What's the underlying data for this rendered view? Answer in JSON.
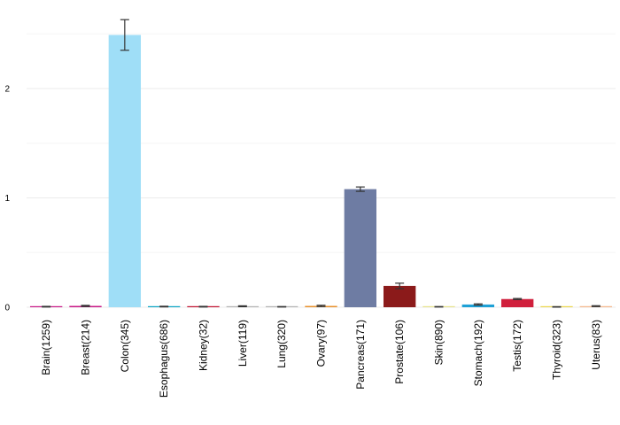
{
  "chart_data": {
    "type": "bar",
    "title": "",
    "xlabel": "",
    "ylabel": "",
    "grid": true,
    "legend": "none",
    "ylim": [
      0,
      2.6
    ],
    "yticks": [
      0,
      1,
      2
    ],
    "categories": [
      "Brain(1259)",
      "Breast(214)",
      "Colon(345)",
      "Esophagus(686)",
      "Kidney(32)",
      "Liver(119)",
      "Lung(320)",
      "Ovary(97)",
      "Pancreas(171)",
      "Prostate(106)",
      "Skin(890)",
      "Stomach(192)",
      "Testis(172)",
      "Thyroid(323)",
      "Uterus(83)"
    ],
    "values": [
      0.005,
      0.012,
      2.49,
      0.006,
      0.005,
      0.009,
      0.004,
      0.012,
      1.08,
      0.195,
      0.004,
      0.025,
      0.075,
      0.003,
      0.01
    ],
    "errors": [
      0.003,
      0.005,
      0.14,
      0.003,
      0.003,
      0.004,
      0.002,
      0.006,
      0.02,
      0.025,
      0.002,
      0.006,
      0.005,
      0.002,
      0.004
    ],
    "colors": [
      "#c71585",
      "#c71585",
      "#9fdef7",
      "#08a4c3",
      "#c0102e",
      "#b3b3b3",
      "#b3b3b3",
      "#e8902a",
      "#6e7ca3",
      "#8b1a1a",
      "#e6e28a",
      "#1ea1d6",
      "#d01f3c",
      "#ecd64b",
      "#f4b88c"
    ]
  }
}
